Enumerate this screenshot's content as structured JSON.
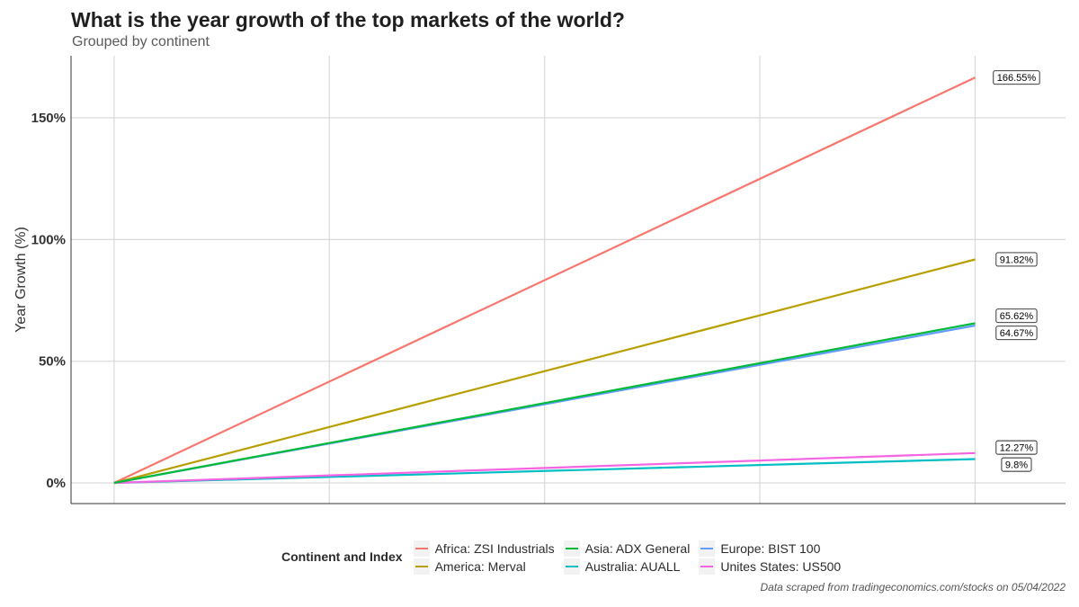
{
  "title": "What is the year growth of the top markets of the world?",
  "subtitle": "Grouped by continent",
  "caption": "Data scraped from tradingeconomics.com/stocks on 05/04/2022",
  "legend_title": "Continent and Index",
  "chart_data": {
    "type": "line",
    "title": "What is the year growth of the top markets of the world?",
    "subtitle": "Grouped by continent",
    "xlabel": "",
    "ylabel": "Year Growth (%)",
    "x": [
      0,
      1
    ],
    "xlim": [
      -0.05,
      1.105
    ],
    "ylim": [
      -8.5,
      175.5
    ],
    "yticks": [
      0,
      50,
      100,
      150
    ],
    "ytick_labels": [
      "0%",
      "50%",
      "100%",
      "150%"
    ],
    "grid": true,
    "legend_position": "bottom",
    "series": [
      {
        "name": "Africa: ZSI Industrials",
        "values": [
          0,
          166.55
        ],
        "label": "166.55%",
        "color": "#F8766D"
      },
      {
        "name": "America: Merval",
        "values": [
          0,
          91.82
        ],
        "label": "91.82%",
        "color": "#B79F00"
      },
      {
        "name": "Asia: ADX General",
        "values": [
          0,
          65.62
        ],
        "label": "65.62%",
        "color": "#00BA38"
      },
      {
        "name": "Australia: AUALL",
        "values": [
          0,
          9.8
        ],
        "label": "9.8%",
        "color": "#00BFC4"
      },
      {
        "name": "Europe: BIST 100",
        "values": [
          0,
          64.67
        ],
        "label": "64.67%",
        "color": "#619CFF"
      },
      {
        "name": "Unites States: US500",
        "values": [
          0,
          12.27
        ],
        "label": "12.27%",
        "color": "#F564E3"
      }
    ]
  }
}
